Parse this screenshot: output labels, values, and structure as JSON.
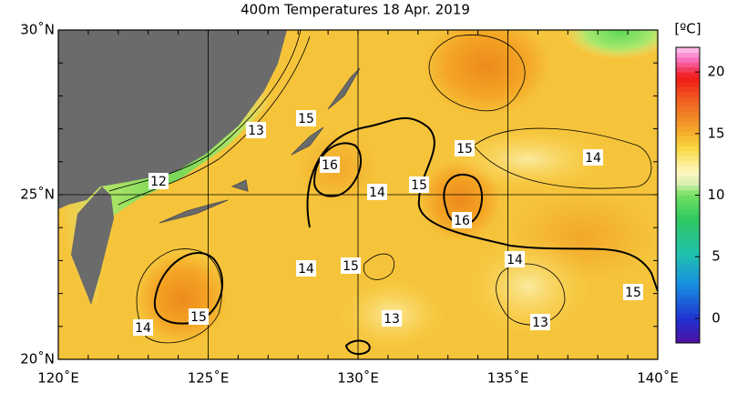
{
  "title": "400m Temperatures  18 Apr. 2019",
  "map": {
    "lonlim": [
      120,
      140
    ],
    "latlim": [
      20,
      30
    ],
    "lon_ticks": [
      {
        "value": 120,
        "label": "120˚E"
      },
      {
        "value": 125,
        "label": "125˚E"
      },
      {
        "value": 130,
        "label": "130˚E"
      },
      {
        "value": 135,
        "label": "135˚E"
      },
      {
        "value": 140,
        "label": "140˚E"
      }
    ],
    "lat_ticks": [
      {
        "value": 30,
        "label": "30˚N"
      },
      {
        "value": 25,
        "label": "25˚N"
      },
      {
        "value": 20,
        "label": "20˚N"
      }
    ],
    "contour_labels": [
      "15",
      "13",
      "16",
      "12",
      "14",
      "15",
      "15",
      "14",
      "16",
      "14",
      "15",
      "14",
      "15",
      "15",
      "14",
      "13",
      "13"
    ]
  },
  "colorbar": {
    "unit": "[ºC]",
    "lim": [
      -2,
      22
    ],
    "ticks": [
      0,
      5,
      10,
      15,
      20
    ]
  }
}
